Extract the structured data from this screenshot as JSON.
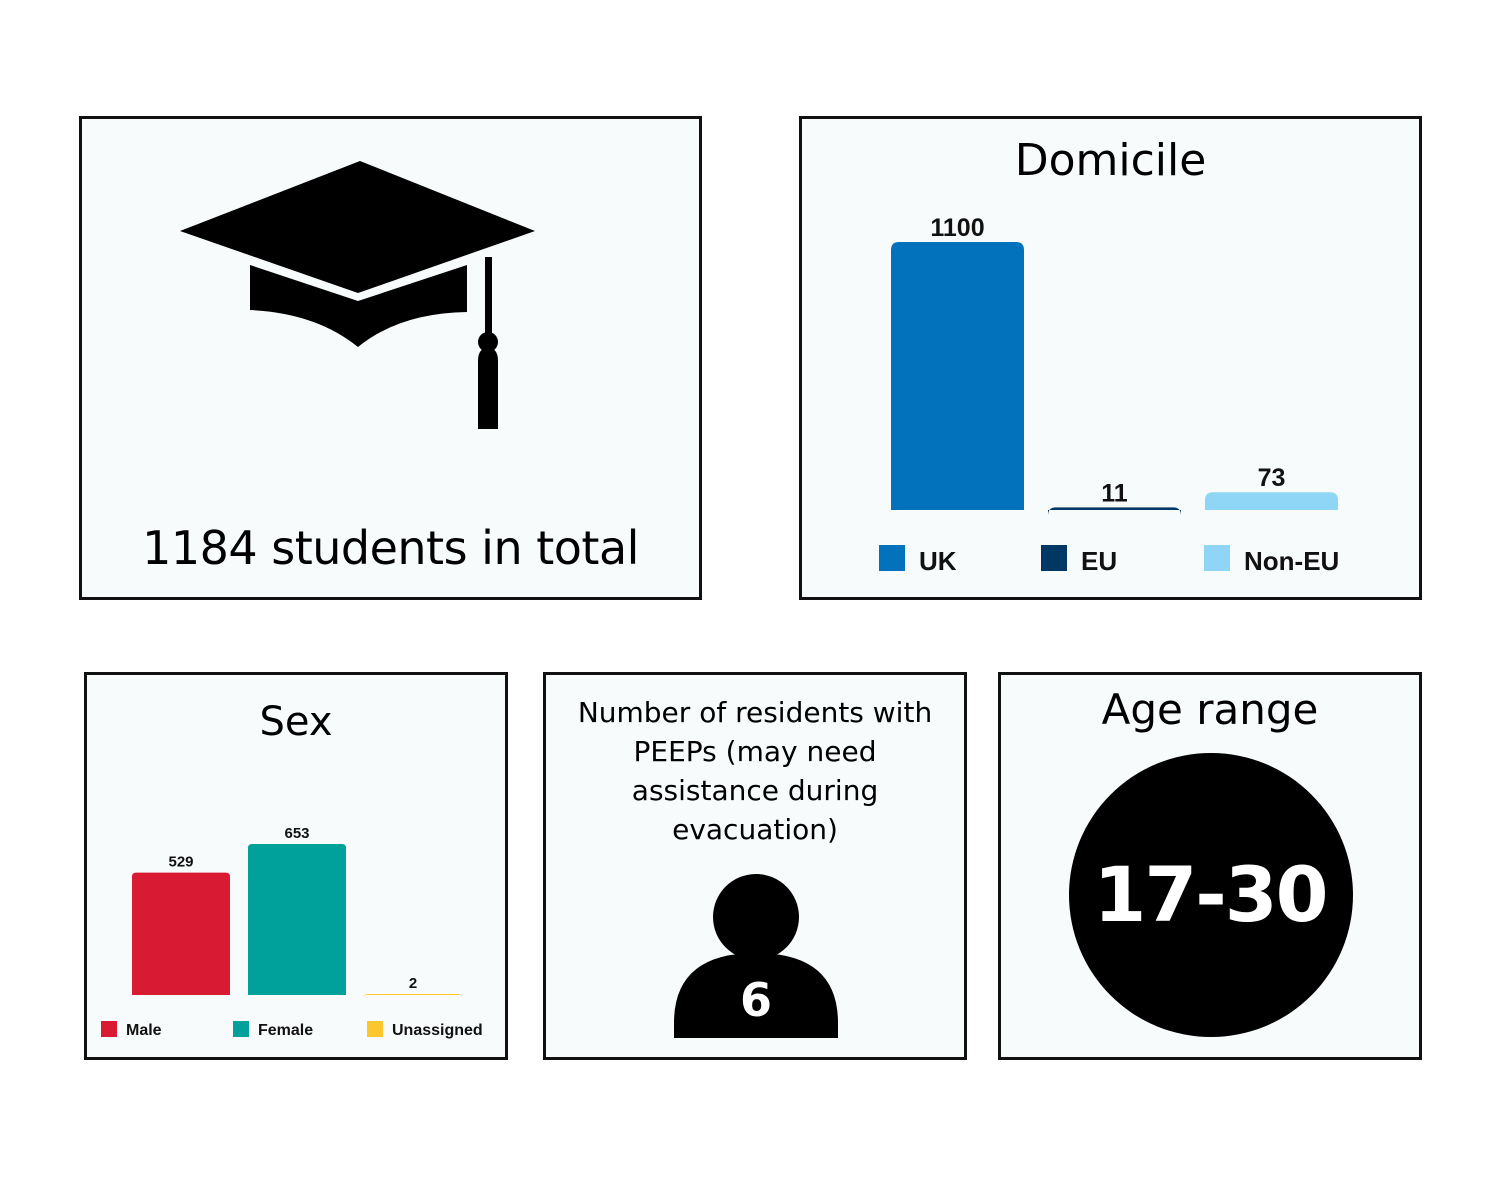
{
  "total": {
    "text": "1184 students in total",
    "icon": "graduation-cap-icon"
  },
  "chart_data": [
    {
      "type": "bar",
      "title": "Domicile",
      "categories": [
        "UK",
        "EU",
        "Non-EU"
      ],
      "values": [
        1100,
        11,
        73
      ],
      "colors": [
        "#0272bd",
        "#003865",
        "#8fd6f6"
      ],
      "legend": "bottom",
      "grid": false
    },
    {
      "type": "bar",
      "title": "Sex",
      "categories": [
        "Male",
        "Female",
        "Unassigned"
      ],
      "values": [
        529,
        653,
        2
      ],
      "colors": [
        "#d91a33",
        "#00a19a",
        "#fcc72c"
      ],
      "legend": "bottom",
      "grid": false
    }
  ],
  "peeps": {
    "title": "Number of residents with PEEPs (may need assistance during evacuation)",
    "value": "6",
    "icon": "person-icon"
  },
  "age": {
    "title": "Age range",
    "value": "17-30"
  }
}
